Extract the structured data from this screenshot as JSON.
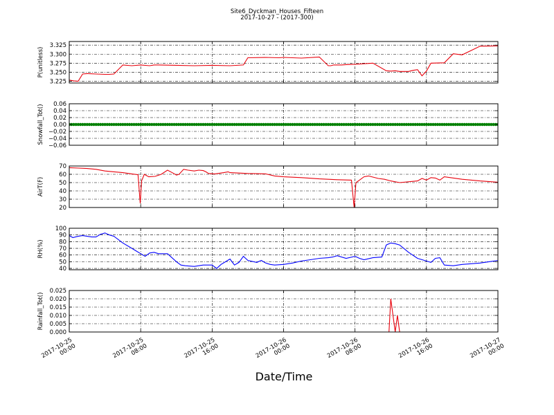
{
  "figure": {
    "title": "Site6_Dyckman_Houses_Fifteen",
    "subtitle": "2017-10-27 - (2017-300)",
    "xlabel": "Date/Time"
  },
  "x_axis": {
    "start": "2017-10-25 00:00",
    "end": "2017-10-27 00:00",
    "tick_labels": [
      [
        "2017-10-25",
        "00:00"
      ],
      [
        "2017-10-25",
        "08:00"
      ],
      [
        "2017-10-25",
        "16:00"
      ],
      [
        "2017-10-26",
        "00:00"
      ],
      [
        "2017-10-26",
        "08:00"
      ],
      [
        "2017-10-26",
        "16:00"
      ],
      [
        "2017-10-27",
        "00:00"
      ]
    ]
  },
  "chart_data": [
    {
      "type": "line",
      "ylabel": "P(unitless)",
      "ylim": [
        3.22,
        3.335
      ],
      "yticks": [
        3.225,
        3.25,
        3.275,
        3.3,
        3.325
      ],
      "ytick_labels": [
        "3.225",
        "3.250",
        "3.275",
        "3.300",
        "3.325"
      ],
      "grid": true,
      "color": "#e8000b",
      "x": [
        0,
        0.5,
        1,
        1.5,
        2,
        3,
        4,
        4.5,
        5,
        6,
        7,
        8,
        9,
        9.5,
        10,
        12,
        14,
        16,
        18,
        19.5,
        20,
        22,
        23.5,
        24,
        26,
        28,
        29,
        29.3,
        29.6,
        30.5,
        31,
        32,
        34,
        35.5,
        36,
        36.5,
        37,
        38,
        38.5,
        39,
        39.5,
        40,
        40.5,
        42,
        43,
        44,
        46,
        48
      ],
      "y": [
        3.228,
        3.226,
        3.225,
        3.245,
        3.246,
        3.245,
        3.244,
        3.244,
        3.245,
        3.27,
        3.268,
        3.27,
        3.268,
        3.27,
        3.27,
        3.269,
        3.268,
        3.269,
        3.268,
        3.27,
        3.29,
        3.291,
        3.29,
        3.291,
        3.289,
        3.292,
        3.268,
        3.268,
        3.27,
        3.27,
        3.271,
        3.272,
        3.275,
        3.254,
        3.253,
        3.254,
        3.252,
        3.252,
        3.255,
        3.257,
        3.24,
        3.253,
        3.275,
        3.276,
        3.301,
        3.298,
        3.322,
        3.323
      ]
    },
    {
      "type": "scatter",
      "ylabel": "Snowfall_Tot()",
      "ylim": [
        -0.06,
        0.06
      ],
      "yticks": [
        -0.06,
        -0.04,
        -0.02,
        0,
        0.02,
        0.04,
        0.06
      ],
      "ytick_labels": [
        "−0.06",
        "−0.04",
        "−0.02",
        "0.00",
        "0.02",
        "0.04",
        "0.06"
      ],
      "grid": true,
      "color": "#008000",
      "x_start": 0,
      "x_end": 48,
      "x_step": 0.25,
      "value": 0
    },
    {
      "type": "line",
      "ylabel": "AirT(F)",
      "ylim": [
        20,
        70
      ],
      "yticks": [
        20,
        30,
        40,
        50,
        60,
        70
      ],
      "ytick_labels": [
        "20",
        "30",
        "40",
        "50",
        "60",
        "70"
      ],
      "grid": true,
      "color": "#e8000b",
      "x": [
        0,
        1,
        2,
        3,
        4,
        5,
        6,
        7,
        7.7,
        7.95,
        8.1,
        8.4,
        8.9,
        9.6,
        10.3,
        11,
        11.7,
        12,
        12.3,
        12.8,
        13.3,
        14,
        14.5,
        15,
        15.3,
        15.6,
        16.3,
        17.3,
        17.8,
        18,
        20,
        22,
        23,
        24,
        26,
        28,
        30,
        31.6,
        31.9,
        32.1,
        32.5,
        33,
        33.5,
        34.6,
        35.3,
        36,
        37,
        39,
        39.5,
        40,
        40.5,
        41,
        41.5,
        42,
        44,
        46,
        48
      ],
      "y": [
        68,
        67.5,
        67,
        66,
        64,
        63,
        62,
        60.5,
        59.5,
        25,
        52,
        60,
        57,
        57.5,
        60,
        65,
        61,
        59,
        60,
        66,
        65,
        64,
        65,
        64.5,
        63,
        61,
        60.5,
        62,
        63,
        62,
        61,
        60.5,
        58,
        57,
        56,
        54.5,
        53.5,
        53,
        20,
        50,
        53,
        57,
        58,
        55,
        54,
        52,
        50,
        52,
        55,
        53,
        56,
        55.5,
        53,
        57,
        54,
        52,
        50.5
      ]
    },
    {
      "type": "line",
      "ylabel": "RH(%)",
      "ylim": [
        38,
        100
      ],
      "yticks": [
        40,
        50,
        60,
        70,
        80,
        90,
        100
      ],
      "ytick_labels": [
        "40",
        "50",
        "60",
        "70",
        "80",
        "90",
        "100"
      ],
      "grid": true,
      "color": "#0000ff",
      "x": [
        0,
        0.4,
        1,
        1.5,
        2,
        2.5,
        3,
        3.5,
        4,
        4.5,
        5,
        6,
        7,
        7.5,
        8,
        8.5,
        9,
        9.5,
        10,
        11,
        12,
        12.5,
        13,
        14,
        15,
        16,
        16.5,
        17,
        17.5,
        18,
        18.5,
        19,
        19.5,
        20,
        21,
        21.5,
        22,
        22.5,
        23,
        24,
        25,
        26,
        27,
        28,
        29,
        29.5,
        30,
        31,
        32,
        32.5,
        33,
        34,
        35,
        35.5,
        36,
        36.5,
        37,
        38,
        39,
        40,
        40.5,
        41,
        41.5,
        42,
        43,
        44,
        45,
        46,
        47,
        48
      ],
      "y": [
        89,
        86,
        88,
        89,
        88,
        87,
        87,
        91,
        93,
        90,
        88,
        78,
        70,
        66,
        62,
        58,
        63,
        64,
        62,
        62,
        50,
        45,
        44,
        43,
        45,
        45,
        40,
        46,
        50,
        54,
        45,
        49,
        58,
        52,
        49,
        52,
        48,
        46,
        45,
        46,
        48,
        51,
        53,
        55,
        56,
        57,
        59,
        55,
        58,
        55,
        53,
        56,
        57,
        75,
        78,
        77,
        75,
        64,
        55,
        51,
        49,
        55,
        56,
        45,
        44,
        46,
        47,
        48,
        50,
        52
      ]
    },
    {
      "type": "line",
      "ylabel": "Rainfall_Tot()",
      "ylim": [
        0,
        0.025
      ],
      "yticks": [
        0,
        0.005,
        0.01,
        0.015,
        0.02,
        0.025
      ],
      "ytick_labels": [
        "0.000",
        "0.005",
        "0.010",
        "0.015",
        "0.020",
        "0.025"
      ],
      "grid": true,
      "color": "#e8000b",
      "x": [
        0,
        35.8,
        36,
        36.25,
        36.5,
        36.75,
        37,
        37.2,
        48
      ],
      "y": [
        0,
        0,
        0.02,
        0.01,
        0,
        0.01,
        0,
        0,
        0
      ]
    }
  ]
}
